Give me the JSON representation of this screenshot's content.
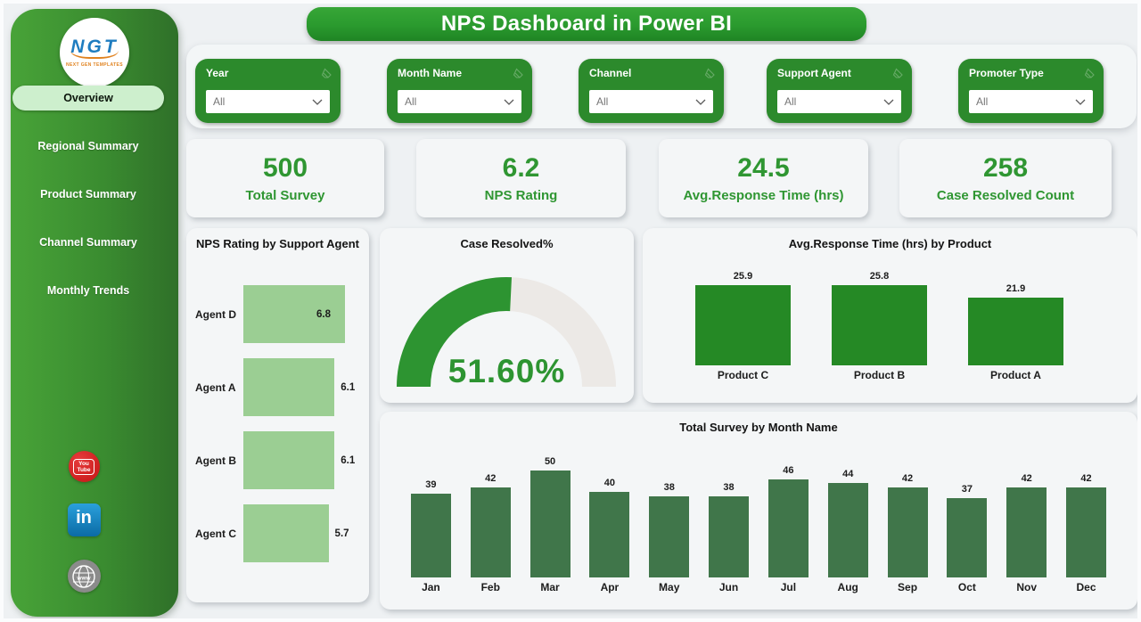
{
  "header": {
    "title": "NPS Dashboard in Power BI"
  },
  "sidebar": {
    "logo": {
      "text": "NGT",
      "subtext": "NEXT GEN TEMPLATES"
    },
    "items": [
      {
        "label": "Overview",
        "active": true
      },
      {
        "label": "Regional Summary",
        "active": false
      },
      {
        "label": "Product Summary",
        "active": false
      },
      {
        "label": "Channel Summary",
        "active": false
      },
      {
        "label": "Monthly Trends",
        "active": false
      }
    ],
    "social_icons": [
      "youtube",
      "linkedin",
      "globe"
    ]
  },
  "filters": [
    {
      "label": "Year",
      "value": "All"
    },
    {
      "label": "Month Name",
      "value": "All"
    },
    {
      "label": "Channel",
      "value": "All"
    },
    {
      "label": "Support Agent",
      "value": "All"
    },
    {
      "label": "Promoter Type",
      "value": "All"
    }
  ],
  "kpis": [
    {
      "value": "500",
      "label": "Total Survey"
    },
    {
      "value": "6.2",
      "label": "NPS Rating"
    },
    {
      "value": "24.5",
      "label": "Avg.Response Time (hrs)"
    },
    {
      "value": "258",
      "label": "Case Resolved Count"
    }
  ],
  "chart_data": [
    {
      "type": "bar",
      "orientation": "horizontal",
      "title": "NPS Rating by Support Agent",
      "categories": [
        "Agent D",
        "Agent A",
        "Agent B",
        "Agent C"
      ],
      "values": [
        6.8,
        6.1,
        6.1,
        5.7
      ],
      "xlim": [
        0,
        6.8
      ],
      "data_labels": true,
      "bar_color": "#9bce93"
    },
    {
      "type": "gauge",
      "title": "Case Resolved%",
      "value": 51.6,
      "display": "51.60%",
      "min": 0,
      "max": 100,
      "fill_color": "#2d9431",
      "track_color": "#ece9e6"
    },
    {
      "type": "bar",
      "orientation": "vertical",
      "title": "Avg.Response Time (hrs) by Product",
      "categories": [
        "Product C",
        "Product B",
        "Product A"
      ],
      "values": [
        25.9,
        25.8,
        21.9
      ],
      "ylim": [
        0,
        25.9
      ],
      "data_labels": true,
      "bar_color": "#258925"
    },
    {
      "type": "bar",
      "orientation": "vertical",
      "title": "Total Survey by Month Name",
      "categories": [
        "Jan",
        "Feb",
        "Mar",
        "Apr",
        "May",
        "Jun",
        "Jul",
        "Aug",
        "Sep",
        "Oct",
        "Nov",
        "Dec"
      ],
      "values": [
        39,
        42,
        50,
        40,
        38,
        38,
        46,
        44,
        42,
        37,
        42,
        42
      ],
      "ylim": [
        0,
        50
      ],
      "data_labels": true,
      "bar_color": "#40764a"
    }
  ],
  "colors": {
    "brand_green": "#2c8a2c",
    "kpi_green": "#2f9632",
    "sidebar_gradient_start": "#48a338",
    "sidebar_gradient_end": "#2f7029",
    "active_pill": "#cdefcd",
    "card_bg": "#f4f6f7",
    "page_bg": "#eef1f3",
    "light_bar": "#9bce93",
    "product_bar": "#258925",
    "month_bar": "#40764a",
    "gauge_fill": "#2d9431",
    "gauge_track": "#ece9e6"
  },
  "icons": {
    "dropdown": "chevron-down",
    "filter_clear": "eraser",
    "social": [
      "youtube",
      "linkedin",
      "globe"
    ]
  }
}
